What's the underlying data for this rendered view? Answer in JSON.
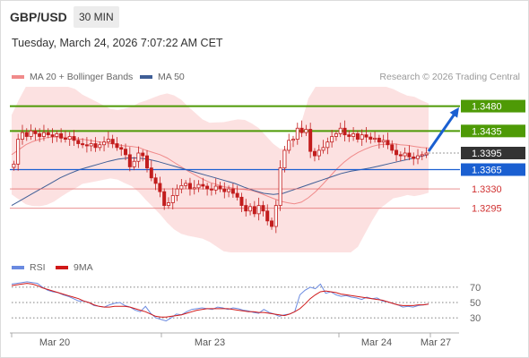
{
  "header": {
    "symbol": "GBP/USD",
    "timeframe": "30 MIN",
    "datetime": "Tuesday, March 24, 2026 7:07:22 AM CET"
  },
  "legend": {
    "ma20": "MA 20 + Bollinger Bands",
    "ma50": "MA 50",
    "rsi": "RSI",
    "ma9": "9MA",
    "credit": "Research © 2026 Trading Central"
  },
  "colors": {
    "green": "#4e9a06",
    "blue": "#1a5fd1",
    "red": "#e06060",
    "dark": "#333333",
    "bollinger": "#fcdcdc",
    "ma20": "#f08a8a",
    "ma50": "#3f5e96",
    "candle": "#c21d1d",
    "rsi_line": "#6a8ae0",
    "rsi_ma": "#d01818"
  },
  "chart_data": [
    {
      "type": "candlestick",
      "ylim": [
        1.3215,
        1.3515
      ],
      "levels": [
        {
          "value": 1.348,
          "label": "1.3480",
          "style": "green-band"
        },
        {
          "value": 1.3435,
          "label": "1.3435",
          "style": "green-band"
        },
        {
          "value": 1.3395,
          "label": "1.3395",
          "style": "current"
        },
        {
          "value": 1.3365,
          "label": "1.3365",
          "style": "blue-line"
        },
        {
          "value": 1.333,
          "label": "1.3330",
          "style": "red-line"
        },
        {
          "value": 1.3295,
          "label": "1.3295",
          "style": "red-line"
        }
      ],
      "closes": [
        1.3375,
        1.342,
        1.3432,
        1.3425,
        1.3435,
        1.343,
        1.3425,
        1.3432,
        1.3428,
        1.3425,
        1.343,
        1.3422,
        1.342,
        1.3425,
        1.3418,
        1.3412,
        1.341,
        1.3408,
        1.3412,
        1.3405,
        1.341,
        1.3415,
        1.342,
        1.3412,
        1.3405,
        1.3402,
        1.3392,
        1.337,
        1.338,
        1.3395,
        1.339,
        1.3368,
        1.335,
        1.334,
        1.3325,
        1.33,
        1.3305,
        1.3318,
        1.333,
        1.3336,
        1.334,
        1.333,
        1.3332,
        1.3338,
        1.3335,
        1.333,
        1.3328,
        1.3335,
        1.333,
        1.3325,
        1.333,
        1.3322,
        1.3315,
        1.33,
        1.329,
        1.3298,
        1.3285,
        1.33,
        1.329,
        1.3272,
        1.3262,
        1.33,
        1.3368,
        1.34,
        1.3418,
        1.342,
        1.344,
        1.3432,
        1.3438,
        1.3398,
        1.339,
        1.34,
        1.3405,
        1.3415,
        1.3425,
        1.343,
        1.344,
        1.3428,
        1.3425,
        1.343,
        1.342,
        1.3428,
        1.3424,
        1.342,
        1.3422,
        1.3415,
        1.3418,
        1.341,
        1.34,
        1.3392,
        1.339,
        1.3395,
        1.3388,
        1.3385,
        1.339,
        1.3392,
        1.3395
      ],
      "ma20": [
        1.3392,
        1.3401,
        1.341,
        1.3416,
        1.342,
        1.3423,
        1.3424,
        1.3424,
        1.3423,
        1.3421,
        1.342,
        1.3418,
        1.3416,
        1.3414,
        1.3412,
        1.341,
        1.3408,
        1.3407,
        1.3405,
        1.34,
        1.3396,
        1.3392,
        1.3386,
        1.3378,
        1.337,
        1.3362,
        1.3355,
        1.3348,
        1.3342,
        1.3338,
        1.3334,
        1.3332,
        1.333,
        1.3329,
        1.3327,
        1.3323,
        1.3318,
        1.3313,
        1.3308,
        1.3305,
        1.3303,
        1.3306,
        1.3314,
        1.3325,
        1.3338,
        1.3352,
        1.3366,
        1.3378,
        1.3388,
        1.3396,
        1.3402,
        1.3407,
        1.341,
        1.3411,
        1.3412,
        1.341,
        1.3409,
        1.3407,
        1.3405,
        1.3404
      ],
      "ma50": [
        1.33,
        1.331,
        1.332,
        1.333,
        1.334,
        1.335,
        1.3358,
        1.3365,
        1.337,
        1.3375,
        1.338,
        1.3384,
        1.3386,
        1.3386,
        1.3384,
        1.338,
        1.3375,
        1.337,
        1.3365,
        1.336,
        1.3355,
        1.335,
        1.3345,
        1.334,
        1.3333,
        1.3327,
        1.3322,
        1.332,
        1.3322,
        1.3328,
        1.3334,
        1.334,
        1.3346,
        1.3352,
        1.3358,
        1.3362,
        1.3365,
        1.3368,
        1.3372,
        1.3376,
        1.338,
        1.3384,
        1.3388,
        1.3392
      ]
    },
    {
      "type": "line",
      "title": "RSI",
      "ylim": [
        15,
        85
      ],
      "yticks": [
        70,
        50,
        30
      ],
      "rsi": [
        74,
        75,
        76,
        77,
        76,
        75,
        70,
        66,
        64,
        63,
        60,
        58,
        55,
        52,
        52,
        50,
        46,
        45,
        44,
        47,
        49,
        50,
        46,
        44,
        40,
        38,
        45,
        36,
        30,
        28,
        26,
        30,
        35,
        34,
        38,
        41,
        42,
        43,
        42,
        41,
        44,
        43,
        41,
        43,
        42,
        40,
        39,
        37,
        36,
        41,
        37,
        35,
        32,
        34,
        35,
        38,
        60,
        66,
        70,
        68,
        74,
        62,
        64,
        60,
        58,
        59,
        57,
        56,
        54,
        57,
        55,
        56,
        52,
        51,
        49,
        47,
        44,
        45,
        44,
        46,
        47,
        48
      ],
      "ma9": [
        72,
        73,
        74,
        75,
        74,
        72,
        69,
        67,
        65,
        63,
        61,
        59,
        57,
        55,
        52,
        50,
        47,
        45,
        44,
        44,
        45,
        45,
        45,
        44,
        42,
        40,
        38,
        35,
        32,
        31,
        31,
        32,
        33,
        34,
        36,
        38,
        40,
        41,
        42,
        42,
        42,
        42,
        42,
        41,
        40,
        39,
        38,
        38,
        37,
        37,
        36,
        35,
        34,
        33,
        35,
        38,
        42,
        48,
        55,
        60,
        64,
        65,
        64,
        63,
        61,
        60,
        59,
        58,
        57,
        56,
        55,
        54,
        53,
        51,
        49,
        47,
        46,
        46,
        46,
        47,
        47,
        48
      ]
    }
  ],
  "xaxis": {
    "labels": [
      "Mar 20",
      "Mar 23",
      "Mar 24",
      "Mar 27"
    ]
  }
}
